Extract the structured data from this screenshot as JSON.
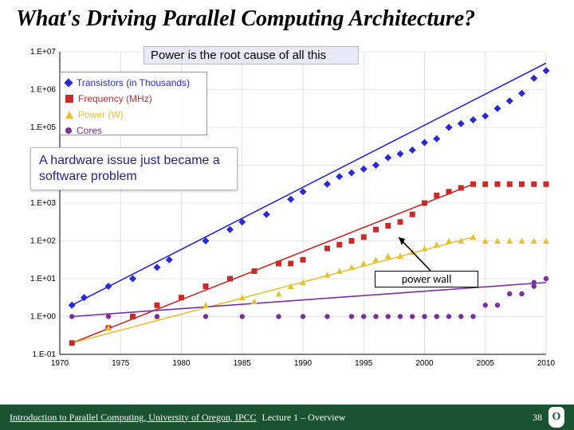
{
  "title": "What's Driving Parallel Computing Architecture?",
  "chart": {
    "type": "scatter-log",
    "title": "Power is the root cause of all this",
    "x_axis": {
      "min": 1970,
      "max": 2010,
      "tick_step": 5,
      "ticks": [
        "1970",
        "1975",
        "1980",
        "1985",
        "1990",
        "1995",
        "2000",
        "2005",
        "2010"
      ]
    },
    "y_axis": {
      "scale": "log",
      "min_exp": -1,
      "max_exp": 7,
      "ticks": [
        "1.E-01",
        "1.E+00",
        "1.E+01",
        "1.E+02",
        "1.E+03",
        "1.E+04",
        "1.E+05",
        "1.E+06",
        "1.E+07"
      ]
    },
    "background_color": "#ffffff",
    "gridline_color": "#cfcfcf",
    "legend": {
      "items": [
        {
          "label": "Transistors (in Thousands)",
          "color": "#2a2ad4",
          "marker": "diamond"
        },
        {
          "label": "Frequency (MHz)",
          "color": "#c92a2a",
          "marker": "square"
        },
        {
          "label": "Power (W)",
          "color": "#e6c233",
          "marker": "triangle"
        },
        {
          "label": "Cores",
          "color": "#7a2fa0",
          "marker": "circle"
        }
      ]
    },
    "series": {
      "transistors": {
        "color": "#2a2ad4",
        "marker": "diamond",
        "trend": {
          "x": [
            1971,
            2010
          ],
          "y_exp": [
            0.3,
            6.7
          ]
        },
        "points": [
          [
            1971,
            0.3
          ],
          [
            1972,
            0.5
          ],
          [
            1974,
            0.8
          ],
          [
            1976,
            1.0
          ],
          [
            1978,
            1.3
          ],
          [
            1979,
            1.5
          ],
          [
            1982,
            2.0
          ],
          [
            1984,
            2.3
          ],
          [
            1985,
            2.5
          ],
          [
            1987,
            2.7
          ],
          [
            1989,
            3.1
          ],
          [
            1990,
            3.3
          ],
          [
            1992,
            3.5
          ],
          [
            1993,
            3.7
          ],
          [
            1994,
            3.8
          ],
          [
            1995,
            3.9
          ],
          [
            1996,
            4.0
          ],
          [
            1997,
            4.2
          ],
          [
            1998,
            4.3
          ],
          [
            1999,
            4.4
          ],
          [
            2000,
            4.6
          ],
          [
            2001,
            4.7
          ],
          [
            2002,
            5.0
          ],
          [
            2003,
            5.1
          ],
          [
            2004,
            5.2
          ],
          [
            2005,
            5.3
          ],
          [
            2006,
            5.5
          ],
          [
            2007,
            5.7
          ],
          [
            2008,
            5.9
          ],
          [
            2009,
            6.3
          ],
          [
            2010,
            6.5
          ]
        ]
      },
      "frequency": {
        "color": "#c92a2a",
        "marker": "square",
        "trend": {
          "x": [
            1971,
            2004
          ],
          "y_exp": [
            -0.7,
            3.5
          ]
        },
        "points": [
          [
            1971,
            -0.7
          ],
          [
            1974,
            -0.3
          ],
          [
            1976,
            0.0
          ],
          [
            1978,
            0.3
          ],
          [
            1980,
            0.5
          ],
          [
            1982,
            0.8
          ],
          [
            1984,
            1.0
          ],
          [
            1986,
            1.2
          ],
          [
            1988,
            1.4
          ],
          [
            1989,
            1.4
          ],
          [
            1990,
            1.5
          ],
          [
            1992,
            1.8
          ],
          [
            1993,
            1.9
          ],
          [
            1994,
            2.0
          ],
          [
            1995,
            2.1
          ],
          [
            1996,
            2.3
          ],
          [
            1997,
            2.4
          ],
          [
            1998,
            2.5
          ],
          [
            1999,
            2.7
          ],
          [
            2000,
            3.0
          ],
          [
            2001,
            3.2
          ],
          [
            2002,
            3.3
          ],
          [
            2003,
            3.4
          ],
          [
            2004,
            3.5
          ],
          [
            2005,
            3.5
          ],
          [
            2006,
            3.5
          ],
          [
            2007,
            3.5
          ],
          [
            2008,
            3.5
          ],
          [
            2009,
            3.5
          ],
          [
            2010,
            3.5
          ]
        ]
      },
      "power": {
        "color": "#e6c233",
        "marker": "triangle",
        "trend": {
          "x": [
            1971,
            2004
          ],
          "y_exp": [
            -0.7,
            2.1
          ]
        },
        "points": [
          [
            1974,
            -0.3
          ],
          [
            1978,
            0.0
          ],
          [
            1982,
            0.3
          ],
          [
            1985,
            0.5
          ],
          [
            1986,
            0.4
          ],
          [
            1988,
            0.6
          ],
          [
            1989,
            0.8
          ],
          [
            1990,
            0.9
          ],
          [
            1992,
            1.1
          ],
          [
            1993,
            1.2
          ],
          [
            1994,
            1.3
          ],
          [
            1995,
            1.4
          ],
          [
            1996,
            1.5
          ],
          [
            1997,
            1.6
          ],
          [
            1998,
            1.6
          ],
          [
            1999,
            1.7
          ],
          [
            2000,
            1.8
          ],
          [
            2001,
            1.9
          ],
          [
            2002,
            2.0
          ],
          [
            2003,
            2.0
          ],
          [
            2004,
            2.1
          ],
          [
            2005,
            2.0
          ],
          [
            2006,
            2.0
          ],
          [
            2007,
            2.0
          ],
          [
            2008,
            2.0
          ],
          [
            2009,
            2.0
          ],
          [
            2010,
            2.0
          ]
        ]
      },
      "cores": {
        "color": "#7a2fa0",
        "marker": "circle",
        "trend": {
          "x": [
            1971,
            2010
          ],
          "y_exp": [
            0.0,
            0.9
          ]
        },
        "points": [
          [
            1971,
            0.0
          ],
          [
            1974,
            0.0
          ],
          [
            1978,
            0.0
          ],
          [
            1982,
            0.0
          ],
          [
            1985,
            0.0
          ],
          [
            1988,
            0.0
          ],
          [
            1990,
            0.0
          ],
          [
            1992,
            0.0
          ],
          [
            1994,
            0.0
          ],
          [
            1995,
            0.0
          ],
          [
            1996,
            0.0
          ],
          [
            1997,
            0.0
          ],
          [
            1998,
            0.0
          ],
          [
            1999,
            0.0
          ],
          [
            2000,
            0.0
          ],
          [
            2001,
            0.0
          ],
          [
            2002,
            0.0
          ],
          [
            2003,
            0.0
          ],
          [
            2004,
            0.0
          ],
          [
            2005,
            0.3
          ],
          [
            2006,
            0.3
          ],
          [
            2007,
            0.6
          ],
          [
            2008,
            0.6
          ],
          [
            2009,
            0.8
          ],
          [
            2009,
            0.9
          ],
          [
            2010,
            1.0
          ]
        ]
      }
    }
  },
  "callout": "A hardware issue just became a software problem",
  "power_wall_label": "power wall",
  "footer": {
    "left": "Introduction to Parallel Computing, University of Oregon, IPCC",
    "center": "Lecture 1 – Overview",
    "page": "38"
  }
}
